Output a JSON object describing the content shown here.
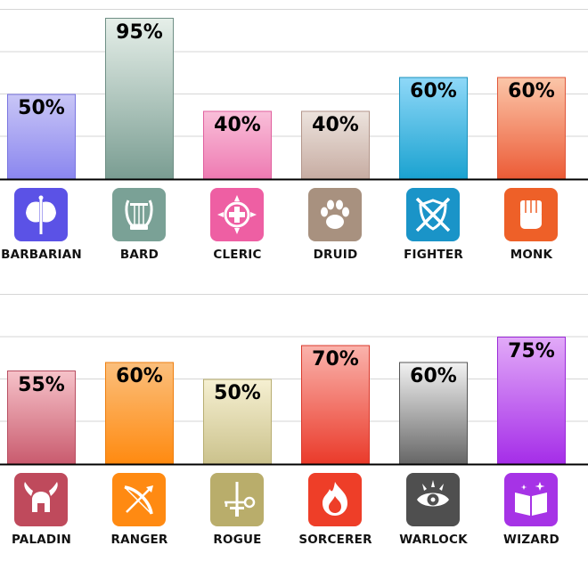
{
  "chart_data": [
    {
      "type": "bar",
      "categories": [
        "BARBARIAN",
        "BARD",
        "CLERIC",
        "DRUID",
        "FIGHTER",
        "MONK"
      ],
      "values": [
        50,
        95,
        40,
        40,
        60,
        60
      ],
      "value_labels": [
        "50%",
        "95%",
        "40%",
        "40%",
        "60%",
        "60%"
      ],
      "ylim": [
        0,
        100
      ],
      "grid": true,
      "colors": [
        {
          "top": "#c9c6f6",
          "bottom": "#8a86ef",
          "stroke": "#7a76e0",
          "icon": "#5b52e6"
        },
        {
          "top": "#e6efe9",
          "bottom": "#7a9d92",
          "stroke": "#6f8f85",
          "icon": "#7aa196"
        },
        {
          "top": "#f9bfd9",
          "bottom": "#ee7ab2",
          "stroke": "#e0609e",
          "icon": "#ee5fa3"
        },
        {
          "top": "#ece3dd",
          "bottom": "#c7aca2",
          "stroke": "#b3968b",
          "icon": "#a8917f"
        },
        {
          "top": "#8fd8f8",
          "bottom": "#1aa2d0",
          "stroke": "#1b91bb",
          "icon": "#1a94c8"
        },
        {
          "top": "#fbc6a9",
          "bottom": "#ec5b36",
          "stroke": "#e0573a",
          "icon": "#ee6028"
        }
      ],
      "icons": [
        "double-axe-icon",
        "lyre-icon",
        "holy-cross-icon",
        "paw-print-icon",
        "crossed-swords-shield-icon",
        "clenched-fist-icon"
      ]
    },
    {
      "type": "bar",
      "categories": [
        "PALADIN",
        "RANGER",
        "ROGUE",
        "SORCERER",
        "WARLOCK",
        "WIZARD"
      ],
      "values": [
        55,
        60,
        50,
        70,
        60,
        75
      ],
      "value_labels": [
        "55%",
        "60%",
        "50%",
        "70%",
        "60%",
        "75%"
      ],
      "ylim": [
        0,
        100
      ],
      "grid": true,
      "colors": [
        {
          "top": "#f6c2c9",
          "bottom": "#c95b6e",
          "stroke": "#b84f62",
          "icon": "#bf4a5c"
        },
        {
          "top": "#fbbf7c",
          "bottom": "#ff8a10",
          "stroke": "#ee7f10",
          "icon": "#ff8a12"
        },
        {
          "top": "#f6f0d2",
          "bottom": "#cbc28c",
          "stroke": "#b8ae72",
          "icon": "#b9ad6b"
        },
        {
          "top": "#fab3ac",
          "bottom": "#ea3a2a",
          "stroke": "#d93a2d",
          "icon": "#ee3e28"
        },
        {
          "top": "#f2f2f2",
          "bottom": "#666666",
          "stroke": "#555555",
          "icon": "#4f4f4f"
        },
        {
          "top": "#e2aaf8",
          "bottom": "#a52de8",
          "stroke": "#9a2ad8",
          "icon": "#a633e6"
        }
      ],
      "icons": [
        "winged-helmet-icon",
        "bow-arrow-icon",
        "dagger-key-icon",
        "flame-icon",
        "eye-icon",
        "spellbook-icon"
      ]
    }
  ]
}
